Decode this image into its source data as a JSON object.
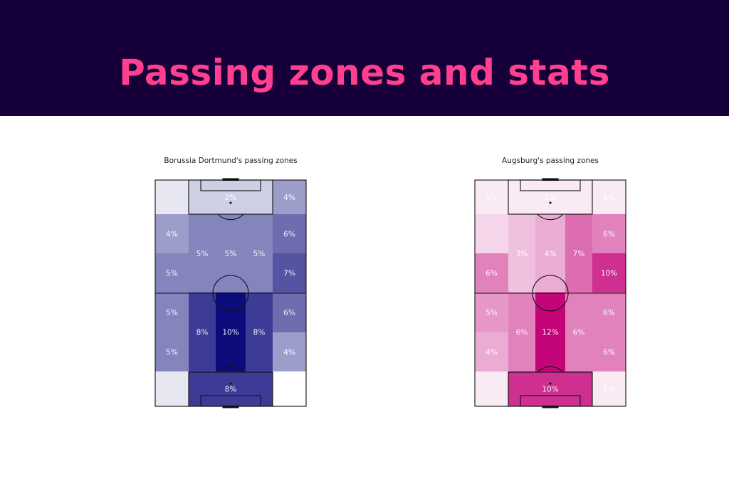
{
  "header": {
    "title": "Passing zones and stats"
  },
  "colors": {
    "header_bg": "#17003a",
    "title_color": "#ff3f8f",
    "dortmund_max": "#0b0b7c",
    "augsburg_max": "#c4057a"
  },
  "chart_data": [
    {
      "type": "heatmap",
      "title": "Borussia Dortmund's passing zones",
      "cmap": "blue",
      "zones": [
        {
          "col": "left",
          "rows": "1",
          "value": 1,
          "label": ""
        },
        {
          "col": "center",
          "rows": "1",
          "value": 2,
          "label": "2%"
        },
        {
          "col": "right",
          "rows": "1",
          "value": 4,
          "label": "4%"
        },
        {
          "col": "left",
          "rows": "2",
          "value": 4,
          "label": "4%"
        },
        {
          "col": "left",
          "rows": "3",
          "value": 5,
          "label": "5%"
        },
        {
          "col": "half-left",
          "rows": "2-3",
          "value": 5,
          "label": "5%"
        },
        {
          "col": "middle",
          "rows": "2-3",
          "value": 5,
          "label": "5%"
        },
        {
          "col": "half-right",
          "rows": "2-3",
          "value": 5,
          "label": "5%"
        },
        {
          "col": "right",
          "rows": "2",
          "value": 6,
          "label": "6%"
        },
        {
          "col": "right",
          "rows": "3",
          "value": 7,
          "label": "7%"
        },
        {
          "col": "left",
          "rows": "4",
          "value": 5,
          "label": "5%"
        },
        {
          "col": "left",
          "rows": "5",
          "value": 5,
          "label": "5%"
        },
        {
          "col": "half-left",
          "rows": "4-5",
          "value": 8,
          "label": "8%"
        },
        {
          "col": "middle",
          "rows": "4-5",
          "value": 10,
          "label": "10%"
        },
        {
          "col": "half-right",
          "rows": "4-5",
          "value": 8,
          "label": "8%"
        },
        {
          "col": "right",
          "rows": "4",
          "value": 6,
          "label": "6%"
        },
        {
          "col": "right",
          "rows": "5",
          "value": 4,
          "label": "4%"
        },
        {
          "col": "left",
          "rows": "6",
          "value": 1,
          "label": ""
        },
        {
          "col": "center",
          "rows": "6",
          "value": 8,
          "label": "8%"
        },
        {
          "col": "right",
          "rows": "6",
          "value": 0,
          "label": "0%"
        }
      ]
    },
    {
      "type": "heatmap",
      "title": "Augsburg's passing zones",
      "cmap": "pink",
      "zones": [
        {
          "col": "left",
          "rows": "1",
          "value": 1,
          "label": "1%"
        },
        {
          "col": "center",
          "rows": "1",
          "value": 1,
          "label": "1%"
        },
        {
          "col": "right",
          "rows": "1",
          "value": 1,
          "label": "1%"
        },
        {
          "col": "left",
          "rows": "2",
          "value": 2,
          "label": ""
        },
        {
          "col": "left",
          "rows": "3",
          "value": 6,
          "label": "6%"
        },
        {
          "col": "half-left",
          "rows": "2-3",
          "value": 3,
          "label": "3%"
        },
        {
          "col": "middle",
          "rows": "2-3",
          "value": 4,
          "label": "4%"
        },
        {
          "col": "half-right",
          "rows": "2-3",
          "value": 7,
          "label": "7%"
        },
        {
          "col": "right",
          "rows": "2",
          "value": 6,
          "label": "6%"
        },
        {
          "col": "right",
          "rows": "3",
          "value": 10,
          "label": "10%"
        },
        {
          "col": "left",
          "rows": "4",
          "value": 5,
          "label": "5%"
        },
        {
          "col": "left",
          "rows": "5",
          "value": 4,
          "label": "4%"
        },
        {
          "col": "half-left",
          "rows": "4-5",
          "value": 6,
          "label": "6%"
        },
        {
          "col": "middle",
          "rows": "4-5",
          "value": 12,
          "label": "12%"
        },
        {
          "col": "half-right",
          "rows": "4-5",
          "value": 6,
          "label": "6%"
        },
        {
          "col": "right",
          "rows": "4",
          "value": 6,
          "label": "6%"
        },
        {
          "col": "right",
          "rows": "5",
          "value": 6,
          "label": "6%"
        },
        {
          "col": "left",
          "rows": "6",
          "value": 1,
          "label": ""
        },
        {
          "col": "center",
          "rows": "6",
          "value": 10,
          "label": "10%"
        },
        {
          "col": "right",
          "rows": "6",
          "value": 1,
          "label": "1%"
        }
      ]
    }
  ]
}
